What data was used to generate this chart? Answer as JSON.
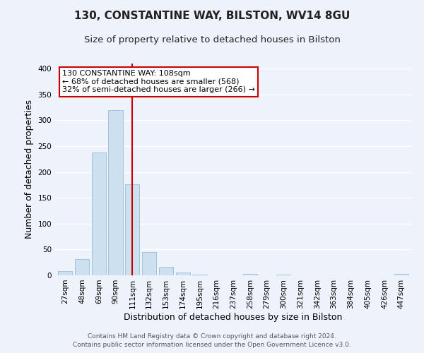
{
  "title": "130, CONSTANTINE WAY, BILSTON, WV14 8GU",
  "subtitle": "Size of property relative to detached houses in Bilston",
  "xlabel": "Distribution of detached houses by size in Bilston",
  "ylabel": "Number of detached properties",
  "bin_labels": [
    "27sqm",
    "48sqm",
    "69sqm",
    "90sqm",
    "111sqm",
    "132sqm",
    "153sqm",
    "174sqm",
    "195sqm",
    "216sqm",
    "237sqm",
    "258sqm",
    "279sqm",
    "300sqm",
    "321sqm",
    "342sqm",
    "363sqm",
    "384sqm",
    "405sqm",
    "426sqm",
    "447sqm"
  ],
  "bin_values": [
    8,
    32,
    238,
    320,
    176,
    45,
    17,
    5,
    2,
    0,
    0,
    3,
    0,
    1,
    0,
    0,
    0,
    0,
    0,
    0,
    3
  ],
  "bar_color": "#cce0f0",
  "bar_edge_color": "#a0c4e0",
  "vline_x_index": 4,
  "vline_color": "#cc0000",
  "annotation_text": "130 CONSTANTINE WAY: 108sqm\n← 68% of detached houses are smaller (568)\n32% of semi-detached houses are larger (266) →",
  "annotation_box_color": "#ffffff",
  "annotation_box_edgecolor": "#cc0000",
  "ylim": [
    0,
    410
  ],
  "yticks": [
    0,
    50,
    100,
    150,
    200,
    250,
    300,
    350,
    400
  ],
  "footer_line1": "Contains HM Land Registry data © Crown copyright and database right 2024.",
  "footer_line2": "Contains public sector information licensed under the Open Government Licence v3.0.",
  "background_color": "#eef2fa",
  "grid_color": "#ffffff",
  "title_fontsize": 11,
  "subtitle_fontsize": 9.5,
  "axis_label_fontsize": 9,
  "tick_fontsize": 7.5,
  "annotation_fontsize": 8,
  "footer_fontsize": 6.5
}
